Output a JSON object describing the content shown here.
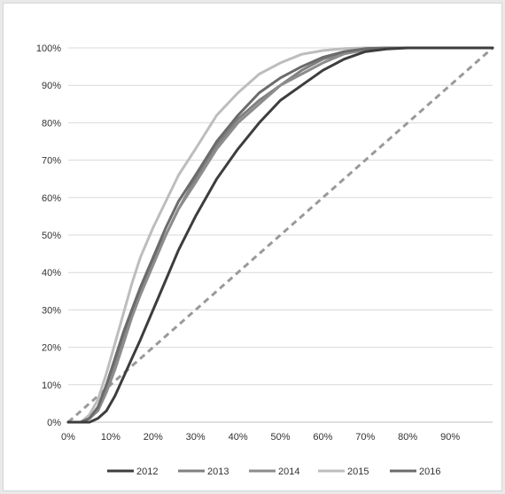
{
  "chart_data": {
    "type": "line",
    "title": "",
    "xlabel": "",
    "ylabel": "",
    "xlim": [
      0,
      100
    ],
    "ylim": [
      0,
      100
    ],
    "x_ticks": [
      0,
      10,
      20,
      30,
      40,
      50,
      60,
      70,
      80,
      90
    ],
    "x_tick_labels": [
      "0%",
      "10%",
      "20%",
      "30%",
      "40%",
      "50%",
      "60%",
      "70%",
      "80%",
      "90%"
    ],
    "y_ticks": [
      0,
      10,
      20,
      30,
      40,
      50,
      60,
      70,
      80,
      90,
      100
    ],
    "y_tick_labels": [
      "0%",
      "10%",
      "20%",
      "30%",
      "40%",
      "50%",
      "60%",
      "70%",
      "80%",
      "90%",
      "100%"
    ],
    "grid": "horizontal",
    "legend_position": "bottom",
    "reference_line": {
      "style": "dashed",
      "color": "#9a9a9a",
      "points": [
        [
          0,
          0
        ],
        [
          100,
          100
        ]
      ]
    },
    "series": [
      {
        "name": "2012",
        "color": "#3d3d3d",
        "x": [
          0,
          5,
          7,
          9,
          11,
          13,
          15,
          17,
          20,
          23,
          26,
          30,
          35,
          40,
          45,
          50,
          55,
          60,
          65,
          70,
          75,
          80,
          100
        ],
        "y": [
          0,
          0,
          1,
          3,
          7,
          12,
          17,
          22,
          30,
          38,
          46,
          55,
          65,
          73,
          80,
          86,
          90,
          94,
          97,
          99,
          99.7,
          100,
          100
        ]
      },
      {
        "name": "2013",
        "color": "#808080",
        "x": [
          0,
          3,
          5,
          7,
          9,
          11,
          13,
          15,
          17,
          20,
          23,
          26,
          30,
          35,
          40,
          45,
          50,
          55,
          60,
          65,
          70,
          75,
          100
        ],
        "y": [
          0,
          0,
          1,
          4,
          9,
          16,
          23,
          29,
          35,
          43,
          50,
          57,
          65,
          74,
          81,
          86,
          90,
          94,
          97,
          98.6,
          99.6,
          100,
          100
        ]
      },
      {
        "name": "2014",
        "color": "#8c8c8c",
        "x": [
          0,
          3,
          5,
          7,
          9,
          11,
          13,
          15,
          17,
          20,
          23,
          26,
          30,
          35,
          40,
          45,
          50,
          55,
          60,
          65,
          70,
          75,
          100
        ],
        "y": [
          0,
          0,
          1,
          3,
          8,
          14,
          21,
          28,
          34,
          42,
          50,
          57,
          64,
          73,
          80,
          85,
          90,
          93,
          96,
          98.4,
          99.5,
          100,
          100
        ]
      },
      {
        "name": "2015",
        "color": "#bdbdbd",
        "x": [
          0,
          3,
          5,
          7,
          9,
          11,
          13,
          15,
          17,
          20,
          23,
          26,
          30,
          35,
          40,
          45,
          50,
          55,
          60,
          65,
          70,
          100
        ],
        "y": [
          0,
          0,
          2,
          6,
          13,
          21,
          29,
          37,
          44,
          52,
          59,
          66,
          73,
          82,
          88,
          93,
          96,
          98.3,
          99.3,
          99.8,
          100,
          100
        ]
      },
      {
        "name": "2016",
        "color": "#6b6b6b",
        "x": [
          0,
          3,
          5,
          7,
          9,
          11,
          13,
          15,
          17,
          20,
          23,
          26,
          30,
          35,
          40,
          45,
          50,
          55,
          60,
          65,
          70,
          75,
          100
        ],
        "y": [
          0,
          0,
          1,
          4,
          10,
          17,
          24,
          30,
          36,
          44,
          52,
          59,
          66,
          75,
          82,
          88,
          92,
          95,
          97.5,
          99,
          99.8,
          100,
          100
        ]
      }
    ]
  }
}
